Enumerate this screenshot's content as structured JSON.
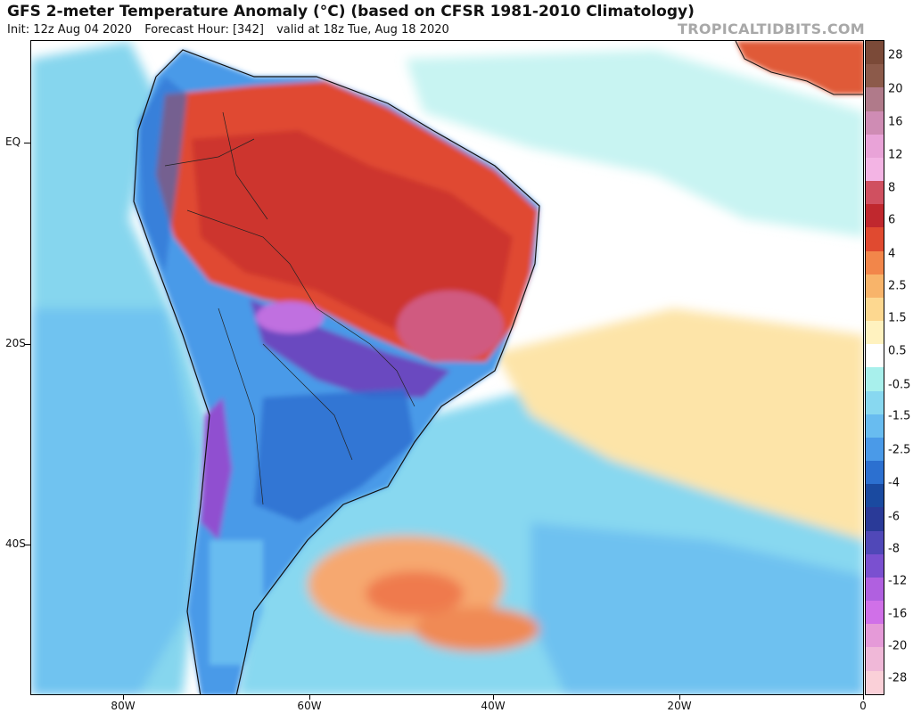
{
  "header": {
    "title": "GFS 2-meter Temperature Anomaly (°C) (based on CFSR 1981-2010 Climatology)",
    "init": "Init: 12z Aug 04 2020",
    "forecast_hour": "Forecast Hour: [342]",
    "valid": "valid at 18z Tue, Aug 18 2020",
    "brand": "TROPICALTIDBITS.COM"
  },
  "axes": {
    "lat_labels": [
      "EQ",
      "20S",
      "40S"
    ],
    "lon_labels": [
      "80W",
      "60W",
      "40W",
      "20W",
      "0"
    ]
  },
  "colorbar": {
    "labels": [
      "28",
      "20",
      "16",
      "12",
      "8",
      "6",
      "4",
      "2.5",
      "1.5",
      "0.5",
      "-0.5",
      "-1.5",
      "-2.5",
      "-4",
      "-6",
      "-8",
      "-12",
      "-16",
      "-20",
      "-28"
    ],
    "colors": [
      "#7b4a38",
      "#8c5a4a",
      "#b07a8a",
      "#cf8cb4",
      "#e9a3d8",
      "#f3b4e4",
      "#d05060",
      "#c0282e",
      "#e04a30",
      "#f2864a",
      "#f8b46a",
      "#fdd890",
      "#fff2bf",
      "#ffffff",
      "#a8f0ec",
      "#88d8f0",
      "#68bcf0",
      "#4a9ae8",
      "#2c70d0",
      "#1a4aa0",
      "#2a3a98",
      "#5048b8",
      "#7a50d0",
      "#b060e0",
      "#d070e8",
      "#e59ad8",
      "#f0b8d8",
      "#fad0d8"
    ]
  }
}
